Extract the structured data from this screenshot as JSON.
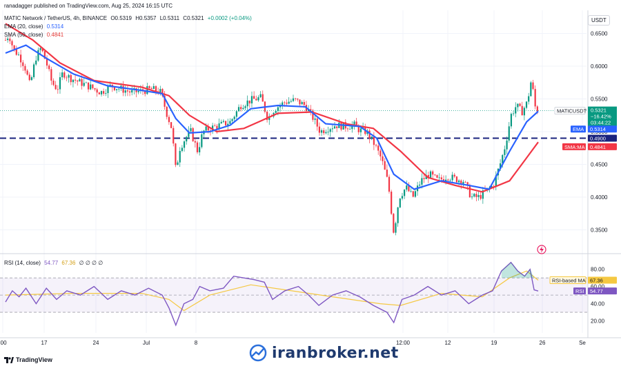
{
  "header": {
    "published_by": "ranadagger published on TradingView.com, Aug 25, 2024 16:15 UTC",
    "symbol_line": "MATIC Network / TetherUS, 4h, BINANCE",
    "ohlc": {
      "o": "O0.5319",
      "h": "H0.5357",
      "l": "L0.5311",
      "c": "C0.5321",
      "chg": "+0.0002 (+0.04%)"
    },
    "ema_label": "EMA (20, close)",
    "ema_value": "0.5314",
    "sma_label": "SMA (50, close)",
    "sma_value": "0.4841"
  },
  "rsi_header": {
    "label": "RSI (14, close)",
    "rsi": "54.77",
    "ma": "67.36",
    "rest": "∅ ∅ ∅ ∅"
  },
  "currency_button": "USDT",
  "price_axis": {
    "ticks": [
      "0.6500",
      "0.6000",
      "0.5500",
      "0.5000",
      "0.4500",
      "0.4000",
      "0.3500"
    ],
    "tick_values": [
      0.65,
      0.6,
      0.55,
      0.5,
      0.45,
      0.4,
      0.35
    ]
  },
  "rsi_axis": {
    "ticks": [
      "80.00",
      "60.00",
      "40.00",
      "20.00"
    ],
    "tick_values": [
      80,
      60,
      40,
      20
    ]
  },
  "time_axis": {
    "ticks": [
      ":00",
      "17",
      "24",
      "Jul",
      "8",
      "12:00",
      "12",
      "19",
      "26",
      "Se"
    ]
  },
  "price_tags": {
    "symbol": "MATICUSDT",
    "price": "0.5321",
    "change": "−16.42%",
    "countdown": "03:44:22",
    "ema_name": "EMA",
    "ema_value": "0.5314",
    "line_value": "0.4900",
    "sma_name": "SMA:MA",
    "sma_value": "0.4841"
  },
  "rsi_tags": {
    "ma_name": "RSI-based MA",
    "ma_value": "67.36",
    "rsi_name": "RSI",
    "rsi_value": "54.77"
  },
  "footer": {
    "brand": "TradingView"
  },
  "watermark": {
    "text": "iranbroker.net"
  },
  "colors": {
    "up": "#089981",
    "down": "#f23645",
    "ema": "#2962ff",
    "sma": "#f23645",
    "support": "#1a237e",
    "rsi": "#7e57c2",
    "rsi_ma": "#f5c842"
  },
  "chart_data": {
    "type": "candlestick",
    "title": "MATIC Network / TetherUS, 4h, BINANCE",
    "ylim": [
      0.32,
      0.68
    ],
    "support_level": 0.49,
    "close_path": [
      {
        "t": 0,
        "c": 0.64
      },
      {
        "t": 5,
        "c": 0.648
      },
      {
        "t": 12,
        "c": 0.625
      },
      {
        "t": 20,
        "c": 0.616
      },
      {
        "t": 28,
        "c": 0.6
      },
      {
        "t": 36,
        "c": 0.57
      },
      {
        "t": 44,
        "c": 0.612
      },
      {
        "t": 52,
        "c": 0.628
      },
      {
        "t": 60,
        "c": 0.605
      },
      {
        "t": 68,
        "c": 0.575
      },
      {
        "t": 76,
        "c": 0.565
      },
      {
        "t": 84,
        "c": 0.59
      },
      {
        "t": 95,
        "c": 0.582
      },
      {
        "t": 110,
        "c": 0.575
      },
      {
        "t": 125,
        "c": 0.568
      },
      {
        "t": 140,
        "c": 0.56
      },
      {
        "t": 155,
        "c": 0.57
      },
      {
        "t": 170,
        "c": 0.565
      },
      {
        "t": 185,
        "c": 0.56
      },
      {
        "t": 200,
        "c": 0.562
      },
      {
        "t": 215,
        "c": 0.565
      },
      {
        "t": 228,
        "c": 0.56
      },
      {
        "t": 236,
        "c": 0.53
      },
      {
        "t": 244,
        "c": 0.505
      },
      {
        "t": 250,
        "c": 0.44
      },
      {
        "t": 256,
        "c": 0.475
      },
      {
        "t": 264,
        "c": 0.49
      },
      {
        "t": 272,
        "c": 0.5
      },
      {
        "t": 282,
        "c": 0.47
      },
      {
        "t": 290,
        "c": 0.5
      },
      {
        "t": 300,
        "c": 0.505
      },
      {
        "t": 315,
        "c": 0.51
      },
      {
        "t": 330,
        "c": 0.515
      },
      {
        "t": 345,
        "c": 0.54
      },
      {
        "t": 360,
        "c": 0.548
      },
      {
        "t": 375,
        "c": 0.552
      },
      {
        "t": 385,
        "c": 0.52
      },
      {
        "t": 395,
        "c": 0.535
      },
      {
        "t": 410,
        "c": 0.545
      },
      {
        "t": 425,
        "c": 0.548
      },
      {
        "t": 440,
        "c": 0.54
      },
      {
        "t": 452,
        "c": 0.52
      },
      {
        "t": 462,
        "c": 0.5
      },
      {
        "t": 472,
        "c": 0.505
      },
      {
        "t": 485,
        "c": 0.51
      },
      {
        "t": 500,
        "c": 0.508
      },
      {
        "t": 512,
        "c": 0.51
      },
      {
        "t": 520,
        "c": 0.502
      },
      {
        "t": 530,
        "c": 0.5
      },
      {
        "t": 542,
        "c": 0.48
      },
      {
        "t": 552,
        "c": 0.458
      },
      {
        "t": 562,
        "c": 0.42
      },
      {
        "t": 570,
        "c": 0.345
      },
      {
        "t": 578,
        "c": 0.4
      },
      {
        "t": 588,
        "c": 0.415
      },
      {
        "t": 598,
        "c": 0.4
      },
      {
        "t": 610,
        "c": 0.425
      },
      {
        "t": 622,
        "c": 0.435
      },
      {
        "t": 635,
        "c": 0.425
      },
      {
        "t": 648,
        "c": 0.432
      },
      {
        "t": 660,
        "c": 0.428
      },
      {
        "t": 672,
        "c": 0.425
      },
      {
        "t": 684,
        "c": 0.4
      },
      {
        "t": 695,
        "c": 0.4
      },
      {
        "t": 706,
        "c": 0.41
      },
      {
        "t": 716,
        "c": 0.418
      },
      {
        "t": 726,
        "c": 0.45
      },
      {
        "t": 734,
        "c": 0.48
      },
      {
        "t": 742,
        "c": 0.525
      },
      {
        "t": 750,
        "c": 0.54
      },
      {
        "t": 758,
        "c": 0.53
      },
      {
        "t": 766,
        "c": 0.545
      },
      {
        "t": 772,
        "c": 0.58
      },
      {
        "t": 778,
        "c": 0.535
      },
      {
        "t": 782,
        "c": 0.532
      }
    ],
    "ema20_path": [
      {
        "t": 0,
        "c": 0.62
      },
      {
        "t": 30,
        "c": 0.632
      },
      {
        "t": 60,
        "c": 0.612
      },
      {
        "t": 100,
        "c": 0.588
      },
      {
        "t": 150,
        "c": 0.57
      },
      {
        "t": 200,
        "c": 0.563
      },
      {
        "t": 230,
        "c": 0.558
      },
      {
        "t": 250,
        "c": 0.52
      },
      {
        "t": 270,
        "c": 0.498
      },
      {
        "t": 300,
        "c": 0.5
      },
      {
        "t": 330,
        "c": 0.51
      },
      {
        "t": 360,
        "c": 0.535
      },
      {
        "t": 400,
        "c": 0.54
      },
      {
        "t": 440,
        "c": 0.538
      },
      {
        "t": 470,
        "c": 0.512
      },
      {
        "t": 520,
        "c": 0.508
      },
      {
        "t": 545,
        "c": 0.49
      },
      {
        "t": 570,
        "c": 0.435
      },
      {
        "t": 600,
        "c": 0.412
      },
      {
        "t": 640,
        "c": 0.425
      },
      {
        "t": 680,
        "c": 0.418
      },
      {
        "t": 710,
        "c": 0.412
      },
      {
        "t": 740,
        "c": 0.47
      },
      {
        "t": 765,
        "c": 0.515
      },
      {
        "t": 782,
        "c": 0.531
      }
    ],
    "sma50_path": [
      {
        "t": 0,
        "c": 0.665
      },
      {
        "t": 40,
        "c": 0.64
      },
      {
        "t": 80,
        "c": 0.605
      },
      {
        "t": 130,
        "c": 0.578
      },
      {
        "t": 200,
        "c": 0.568
      },
      {
        "t": 240,
        "c": 0.555
      },
      {
        "t": 270,
        "c": 0.525
      },
      {
        "t": 310,
        "c": 0.5
      },
      {
        "t": 350,
        "c": 0.505
      },
      {
        "t": 400,
        "c": 0.528
      },
      {
        "t": 450,
        "c": 0.53
      },
      {
        "t": 500,
        "c": 0.512
      },
      {
        "t": 540,
        "c": 0.505
      },
      {
        "t": 580,
        "c": 0.47
      },
      {
        "t": 620,
        "c": 0.43
      },
      {
        "t": 660,
        "c": 0.418
      },
      {
        "t": 700,
        "c": 0.408
      },
      {
        "t": 740,
        "c": 0.425
      },
      {
        "t": 765,
        "c": 0.46
      },
      {
        "t": 782,
        "c": 0.484
      }
    ],
    "rsi": {
      "ylim": [
        10,
        95
      ],
      "overbought": 70,
      "oversold": 30,
      "path": [
        {
          "t": 0,
          "v": 42
        },
        {
          "t": 10,
          "v": 55
        },
        {
          "t": 20,
          "v": 48
        },
        {
          "t": 30,
          "v": 58
        },
        {
          "t": 45,
          "v": 40
        },
        {
          "t": 60,
          "v": 58
        },
        {
          "t": 75,
          "v": 45
        },
        {
          "t": 90,
          "v": 55
        },
        {
          "t": 110,
          "v": 50
        },
        {
          "t": 130,
          "v": 60
        },
        {
          "t": 150,
          "v": 45
        },
        {
          "t": 170,
          "v": 55
        },
        {
          "t": 190,
          "v": 50
        },
        {
          "t": 210,
          "v": 58
        },
        {
          "t": 230,
          "v": 50
        },
        {
          "t": 240,
          "v": 35
        },
        {
          "t": 250,
          "v": 15
        },
        {
          "t": 262,
          "v": 40
        },
        {
          "t": 275,
          "v": 45
        },
        {
          "t": 285,
          "v": 60
        },
        {
          "t": 300,
          "v": 55
        },
        {
          "t": 320,
          "v": 58
        },
        {
          "t": 335,
          "v": 72
        },
        {
          "t": 350,
          "v": 70
        },
        {
          "t": 365,
          "v": 68
        },
        {
          "t": 380,
          "v": 65
        },
        {
          "t": 392,
          "v": 45
        },
        {
          "t": 410,
          "v": 55
        },
        {
          "t": 430,
          "v": 60
        },
        {
          "t": 445,
          "v": 50
        },
        {
          "t": 460,
          "v": 38
        },
        {
          "t": 480,
          "v": 50
        },
        {
          "t": 500,
          "v": 55
        },
        {
          "t": 520,
          "v": 48
        },
        {
          "t": 540,
          "v": 38
        },
        {
          "t": 560,
          "v": 30
        },
        {
          "t": 570,
          "v": 18
        },
        {
          "t": 582,
          "v": 45
        },
        {
          "t": 600,
          "v": 50
        },
        {
          "t": 620,
          "v": 60
        },
        {
          "t": 640,
          "v": 50
        },
        {
          "t": 660,
          "v": 55
        },
        {
          "t": 680,
          "v": 40
        },
        {
          "t": 700,
          "v": 50
        },
        {
          "t": 715,
          "v": 55
        },
        {
          "t": 728,
          "v": 78
        },
        {
          "t": 742,
          "v": 88
        },
        {
          "t": 752,
          "v": 78
        },
        {
          "t": 762,
          "v": 72
        },
        {
          "t": 770,
          "v": 80
        },
        {
          "t": 776,
          "v": 56
        },
        {
          "t": 782,
          "v": 54.77
        }
      ],
      "ma_path": [
        {
          "t": 0,
          "v": 50
        },
        {
          "t": 100,
          "v": 52
        },
        {
          "t": 200,
          "v": 52
        },
        {
          "t": 240,
          "v": 45
        },
        {
          "t": 262,
          "v": 32
        },
        {
          "t": 300,
          "v": 50
        },
        {
          "t": 360,
          "v": 62
        },
        {
          "t": 420,
          "v": 55
        },
        {
          "t": 480,
          "v": 48
        },
        {
          "t": 550,
          "v": 40
        },
        {
          "t": 580,
          "v": 38
        },
        {
          "t": 640,
          "v": 52
        },
        {
          "t": 700,
          "v": 48
        },
        {
          "t": 740,
          "v": 70
        },
        {
          "t": 765,
          "v": 78
        },
        {
          "t": 782,
          "v": 67.36
        }
      ]
    }
  }
}
